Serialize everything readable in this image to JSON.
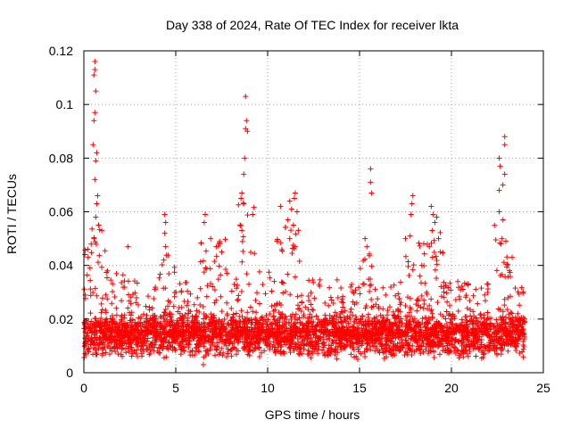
{
  "chart_data": {
    "type": "scatter",
    "title": "Day 338 of 2024, Rate Of TEC Index for receiver lkta",
    "xlabel": "GPS time / hours",
    "ylabel": "ROTI / TECUs",
    "xlim": [
      0,
      25
    ],
    "ylim": [
      0,
      0.12
    ],
    "xticks": [
      0,
      5,
      10,
      15,
      20,
      25
    ],
    "xtick_labels": [
      "0",
      "5",
      "10",
      "15",
      "20",
      "25"
    ],
    "yticks": [
      0,
      0.02,
      0.04,
      0.06,
      0.08,
      0.1,
      0.12
    ],
    "ytick_labels": [
      "0",
      "0.02",
      "0.04",
      "0.06",
      "0.08",
      "0.1",
      "0.12"
    ],
    "grid": true,
    "marker": "+",
    "color": "#ff0000",
    "data_x_range": [
      0,
      24
    ],
    "baseline_band": [
      0.005,
      0.02
    ],
    "series": [
      {
        "name": "ROTI",
        "notable_points": [
          {
            "x": 0.6,
            "y": 0.116
          },
          {
            "x": 0.6,
            "y": 0.113
          },
          {
            "x": 0.55,
            "y": 0.111
          },
          {
            "x": 0.65,
            "y": 0.105
          },
          {
            "x": 0.6,
            "y": 0.097
          },
          {
            "x": 0.55,
            "y": 0.094
          },
          {
            "x": 0.5,
            "y": 0.085
          },
          {
            "x": 0.7,
            "y": 0.082
          },
          {
            "x": 0.65,
            "y": 0.079
          },
          {
            "x": 0.6,
            "y": 0.072
          },
          {
            "x": 0.75,
            "y": 0.066
          },
          {
            "x": 0.7,
            "y": 0.063
          },
          {
            "x": 0.65,
            "y": 0.058
          },
          {
            "x": 0.8,
            "y": 0.055
          },
          {
            "x": 0.55,
            "y": 0.05
          },
          {
            "x": 0.4,
            "y": 0.048
          },
          {
            "x": 2.4,
            "y": 0.047
          },
          {
            "x": 4.4,
            "y": 0.059
          },
          {
            "x": 4.45,
            "y": 0.056
          },
          {
            "x": 4.4,
            "y": 0.052
          },
          {
            "x": 4.45,
            "y": 0.047
          },
          {
            "x": 4.35,
            "y": 0.042
          },
          {
            "x": 6.6,
            "y": 0.059
          },
          {
            "x": 6.55,
            "y": 0.056
          },
          {
            "x": 6.9,
            "y": 0.05
          },
          {
            "x": 7.2,
            "y": 0.047
          },
          {
            "x": 7.5,
            "y": 0.045
          },
          {
            "x": 8.8,
            "y": 0.103
          },
          {
            "x": 8.85,
            "y": 0.094
          },
          {
            "x": 8.8,
            "y": 0.091
          },
          {
            "x": 8.9,
            "y": 0.09
          },
          {
            "x": 8.75,
            "y": 0.08
          },
          {
            "x": 8.7,
            "y": 0.074
          },
          {
            "x": 8.6,
            "y": 0.067
          },
          {
            "x": 8.55,
            "y": 0.065
          },
          {
            "x": 8.7,
            "y": 0.063
          },
          {
            "x": 8.5,
            "y": 0.055
          },
          {
            "x": 8.6,
            "y": 0.053
          },
          {
            "x": 10.7,
            "y": 0.062
          },
          {
            "x": 11.2,
            "y": 0.064
          },
          {
            "x": 11.3,
            "y": 0.061
          },
          {
            "x": 11.5,
            "y": 0.067
          },
          {
            "x": 11.45,
            "y": 0.065
          },
          {
            "x": 11.6,
            "y": 0.06
          },
          {
            "x": 11.1,
            "y": 0.057
          },
          {
            "x": 11.4,
            "y": 0.055
          },
          {
            "x": 11.2,
            "y": 0.05
          },
          {
            "x": 10.5,
            "y": 0.049
          },
          {
            "x": 11.5,
            "y": 0.047
          },
          {
            "x": 15.6,
            "y": 0.076
          },
          {
            "x": 15.6,
            "y": 0.071
          },
          {
            "x": 15.65,
            "y": 0.067
          },
          {
            "x": 15.3,
            "y": 0.05
          },
          {
            "x": 15.4,
            "y": 0.047
          },
          {
            "x": 17.9,
            "y": 0.066
          },
          {
            "x": 17.85,
            "y": 0.063
          },
          {
            "x": 17.8,
            "y": 0.059
          },
          {
            "x": 17.75,
            "y": 0.051
          },
          {
            "x": 17.5,
            "y": 0.05
          },
          {
            "x": 18.9,
            "y": 0.062
          },
          {
            "x": 19.0,
            "y": 0.059
          },
          {
            "x": 19.2,
            "y": 0.058
          },
          {
            "x": 19.1,
            "y": 0.056
          },
          {
            "x": 18.95,
            "y": 0.053
          },
          {
            "x": 19.3,
            "y": 0.05
          },
          {
            "x": 18.8,
            "y": 0.047
          },
          {
            "x": 19.4,
            "y": 0.045
          },
          {
            "x": 22.9,
            "y": 0.088
          },
          {
            "x": 22.9,
            "y": 0.085
          },
          {
            "x": 22.6,
            "y": 0.08
          },
          {
            "x": 22.65,
            "y": 0.077
          },
          {
            "x": 22.9,
            "y": 0.074
          },
          {
            "x": 22.8,
            "y": 0.07
          },
          {
            "x": 22.6,
            "y": 0.068
          },
          {
            "x": 22.6,
            "y": 0.06
          },
          {
            "x": 22.8,
            "y": 0.057
          },
          {
            "x": 22.75,
            "y": 0.05
          },
          {
            "x": 22.7,
            "y": 0.048
          },
          {
            "x": 23.3,
            "y": 0.043
          },
          {
            "x": 6.5,
            "y": 0.003
          },
          {
            "x": 14.9,
            "y": 0.005
          }
        ]
      }
    ],
    "activity_regions": [
      {
        "x": [
          0.0,
          1.2
        ],
        "level": 0.055
      },
      {
        "x": [
          1.2,
          3.0
        ],
        "level": 0.038
      },
      {
        "x": [
          3.0,
          4.0
        ],
        "level": 0.032
      },
      {
        "x": [
          4.0,
          5.0
        ],
        "level": 0.045
      },
      {
        "x": [
          5.0,
          6.3
        ],
        "level": 0.034
      },
      {
        "x": [
          6.3,
          7.8
        ],
        "level": 0.05
      },
      {
        "x": [
          7.8,
          8.4
        ],
        "level": 0.036
      },
      {
        "x": [
          8.4,
          9.4
        ],
        "level": 0.065
      },
      {
        "x": [
          9.4,
          10.5
        ],
        "level": 0.038
      },
      {
        "x": [
          10.5,
          11.8
        ],
        "level": 0.055
      },
      {
        "x": [
          11.8,
          14.0
        ],
        "level": 0.036
      },
      {
        "x": [
          14.0,
          15.0
        ],
        "level": 0.033
      },
      {
        "x": [
          15.0,
          16.0
        ],
        "level": 0.045
      },
      {
        "x": [
          16.0,
          17.5
        ],
        "level": 0.034
      },
      {
        "x": [
          17.5,
          18.4
        ],
        "level": 0.05
      },
      {
        "x": [
          18.4,
          19.7
        ],
        "level": 0.055
      },
      {
        "x": [
          19.7,
          22.2
        ],
        "level": 0.034
      },
      {
        "x": [
          22.2,
          23.4
        ],
        "level": 0.055
      },
      {
        "x": [
          23.4,
          24.0
        ],
        "level": 0.032
      }
    ]
  }
}
